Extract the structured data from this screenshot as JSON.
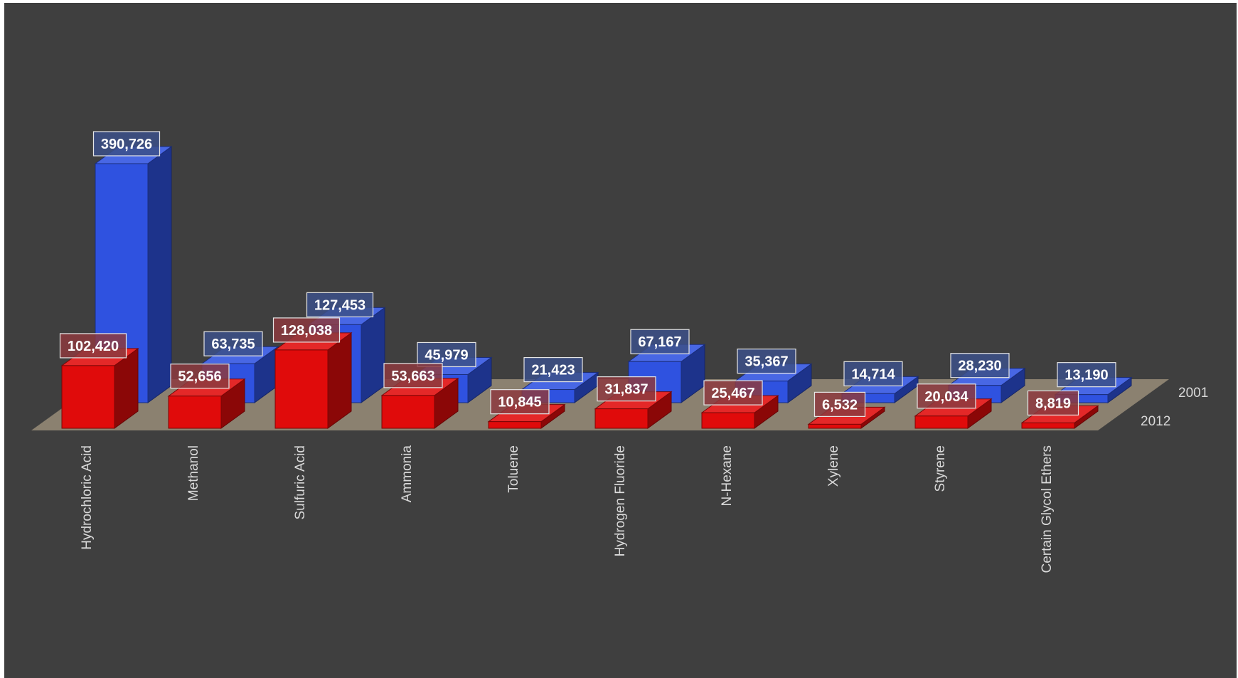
{
  "chart_data": {
    "type": "bar",
    "categories": [
      "Hydrochloric Acid",
      "Methanol",
      "Sulfuric Acid",
      "Ammonia",
      "Toluene",
      "Hydrogen Fluoride",
      "N-Hexane",
      "Xylene",
      "Styrene",
      "Certain Glycol Ethers"
    ],
    "series": [
      {
        "name": "2001",
        "color": "#2f52e0",
        "values": [
          390726,
          63735,
          127453,
          45979,
          21423,
          67167,
          35367,
          14714,
          28230,
          13190
        ],
        "labels": [
          "390,726",
          "63,735",
          "127,453",
          "45,979",
          "21,423",
          "67,167",
          "35,367",
          "14,714",
          "28,230",
          "13,190"
        ]
      },
      {
        "name": "2012",
        "color": "#e00b0b",
        "values": [
          102420,
          52656,
          128038,
          53663,
          10845,
          31837,
          25467,
          6532,
          20034,
          8819
        ],
        "labels": [
          "102,420",
          "52,656",
          "128,038",
          "53,663",
          "10,845",
          "31,837",
          "25,467",
          "6,532",
          "20,034",
          "8,819"
        ]
      }
    ],
    "style": "3d-column",
    "grid": false,
    "legend": "none"
  }
}
